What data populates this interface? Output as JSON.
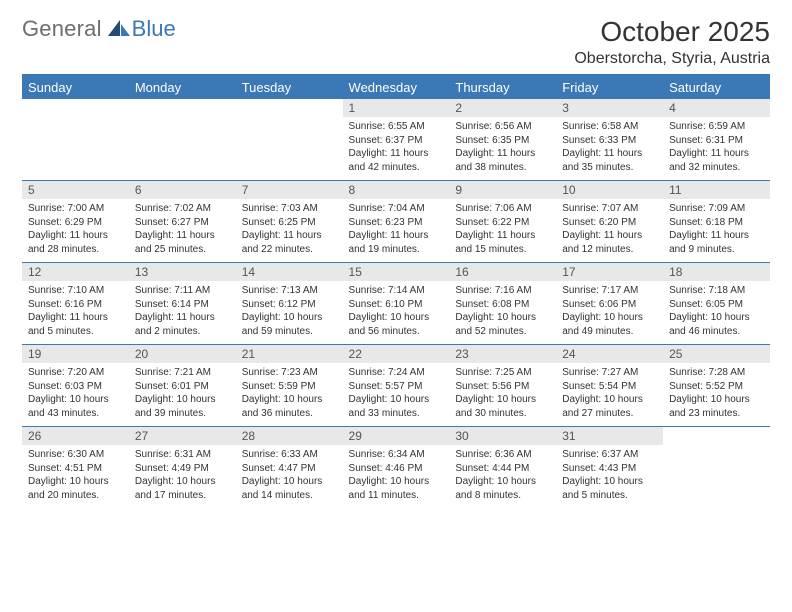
{
  "brand": {
    "part1": "General",
    "part2": "Blue"
  },
  "title": "October 2025",
  "location": "Oberstorcha, Styria, Austria",
  "colors": {
    "accent": "#3b78b6",
    "header_bg": "#3b78b6",
    "header_fg": "#ffffff",
    "daynum_bg": "#e8e8e8",
    "text": "#333333",
    "logo_grey": "#6e6e6e"
  },
  "day_labels": [
    "Sunday",
    "Monday",
    "Tuesday",
    "Wednesday",
    "Thursday",
    "Friday",
    "Saturday"
  ],
  "weeks": [
    {
      "nums": [
        "",
        "",
        "",
        "1",
        "2",
        "3",
        "4"
      ],
      "cells": [
        null,
        null,
        null,
        {
          "sunrise": "Sunrise: 6:55 AM",
          "sunset": "Sunset: 6:37 PM",
          "daylight": "Daylight: 11 hours and 42 minutes."
        },
        {
          "sunrise": "Sunrise: 6:56 AM",
          "sunset": "Sunset: 6:35 PM",
          "daylight": "Daylight: 11 hours and 38 minutes."
        },
        {
          "sunrise": "Sunrise: 6:58 AM",
          "sunset": "Sunset: 6:33 PM",
          "daylight": "Daylight: 11 hours and 35 minutes."
        },
        {
          "sunrise": "Sunrise: 6:59 AM",
          "sunset": "Sunset: 6:31 PM",
          "daylight": "Daylight: 11 hours and 32 minutes."
        }
      ]
    },
    {
      "nums": [
        "5",
        "6",
        "7",
        "8",
        "9",
        "10",
        "11"
      ],
      "cells": [
        {
          "sunrise": "Sunrise: 7:00 AM",
          "sunset": "Sunset: 6:29 PM",
          "daylight": "Daylight: 11 hours and 28 minutes."
        },
        {
          "sunrise": "Sunrise: 7:02 AM",
          "sunset": "Sunset: 6:27 PM",
          "daylight": "Daylight: 11 hours and 25 minutes."
        },
        {
          "sunrise": "Sunrise: 7:03 AM",
          "sunset": "Sunset: 6:25 PM",
          "daylight": "Daylight: 11 hours and 22 minutes."
        },
        {
          "sunrise": "Sunrise: 7:04 AM",
          "sunset": "Sunset: 6:23 PM",
          "daylight": "Daylight: 11 hours and 19 minutes."
        },
        {
          "sunrise": "Sunrise: 7:06 AM",
          "sunset": "Sunset: 6:22 PM",
          "daylight": "Daylight: 11 hours and 15 minutes."
        },
        {
          "sunrise": "Sunrise: 7:07 AM",
          "sunset": "Sunset: 6:20 PM",
          "daylight": "Daylight: 11 hours and 12 minutes."
        },
        {
          "sunrise": "Sunrise: 7:09 AM",
          "sunset": "Sunset: 6:18 PM",
          "daylight": "Daylight: 11 hours and 9 minutes."
        }
      ]
    },
    {
      "nums": [
        "12",
        "13",
        "14",
        "15",
        "16",
        "17",
        "18"
      ],
      "cells": [
        {
          "sunrise": "Sunrise: 7:10 AM",
          "sunset": "Sunset: 6:16 PM",
          "daylight": "Daylight: 11 hours and 5 minutes."
        },
        {
          "sunrise": "Sunrise: 7:11 AM",
          "sunset": "Sunset: 6:14 PM",
          "daylight": "Daylight: 11 hours and 2 minutes."
        },
        {
          "sunrise": "Sunrise: 7:13 AM",
          "sunset": "Sunset: 6:12 PM",
          "daylight": "Daylight: 10 hours and 59 minutes."
        },
        {
          "sunrise": "Sunrise: 7:14 AM",
          "sunset": "Sunset: 6:10 PM",
          "daylight": "Daylight: 10 hours and 56 minutes."
        },
        {
          "sunrise": "Sunrise: 7:16 AM",
          "sunset": "Sunset: 6:08 PM",
          "daylight": "Daylight: 10 hours and 52 minutes."
        },
        {
          "sunrise": "Sunrise: 7:17 AM",
          "sunset": "Sunset: 6:06 PM",
          "daylight": "Daylight: 10 hours and 49 minutes."
        },
        {
          "sunrise": "Sunrise: 7:18 AM",
          "sunset": "Sunset: 6:05 PM",
          "daylight": "Daylight: 10 hours and 46 minutes."
        }
      ]
    },
    {
      "nums": [
        "19",
        "20",
        "21",
        "22",
        "23",
        "24",
        "25"
      ],
      "cells": [
        {
          "sunrise": "Sunrise: 7:20 AM",
          "sunset": "Sunset: 6:03 PM",
          "daylight": "Daylight: 10 hours and 43 minutes."
        },
        {
          "sunrise": "Sunrise: 7:21 AM",
          "sunset": "Sunset: 6:01 PM",
          "daylight": "Daylight: 10 hours and 39 minutes."
        },
        {
          "sunrise": "Sunrise: 7:23 AM",
          "sunset": "Sunset: 5:59 PM",
          "daylight": "Daylight: 10 hours and 36 minutes."
        },
        {
          "sunrise": "Sunrise: 7:24 AM",
          "sunset": "Sunset: 5:57 PM",
          "daylight": "Daylight: 10 hours and 33 minutes."
        },
        {
          "sunrise": "Sunrise: 7:25 AM",
          "sunset": "Sunset: 5:56 PM",
          "daylight": "Daylight: 10 hours and 30 minutes."
        },
        {
          "sunrise": "Sunrise: 7:27 AM",
          "sunset": "Sunset: 5:54 PM",
          "daylight": "Daylight: 10 hours and 27 minutes."
        },
        {
          "sunrise": "Sunrise: 7:28 AM",
          "sunset": "Sunset: 5:52 PM",
          "daylight": "Daylight: 10 hours and 23 minutes."
        }
      ]
    },
    {
      "nums": [
        "26",
        "27",
        "28",
        "29",
        "30",
        "31",
        ""
      ],
      "cells": [
        {
          "sunrise": "Sunrise: 6:30 AM",
          "sunset": "Sunset: 4:51 PM",
          "daylight": "Daylight: 10 hours and 20 minutes."
        },
        {
          "sunrise": "Sunrise: 6:31 AM",
          "sunset": "Sunset: 4:49 PM",
          "daylight": "Daylight: 10 hours and 17 minutes."
        },
        {
          "sunrise": "Sunrise: 6:33 AM",
          "sunset": "Sunset: 4:47 PM",
          "daylight": "Daylight: 10 hours and 14 minutes."
        },
        {
          "sunrise": "Sunrise: 6:34 AM",
          "sunset": "Sunset: 4:46 PM",
          "daylight": "Daylight: 10 hours and 11 minutes."
        },
        {
          "sunrise": "Sunrise: 6:36 AM",
          "sunset": "Sunset: 4:44 PM",
          "daylight": "Daylight: 10 hours and 8 minutes."
        },
        {
          "sunrise": "Sunrise: 6:37 AM",
          "sunset": "Sunset: 4:43 PM",
          "daylight": "Daylight: 10 hours and 5 minutes."
        },
        null
      ]
    }
  ]
}
